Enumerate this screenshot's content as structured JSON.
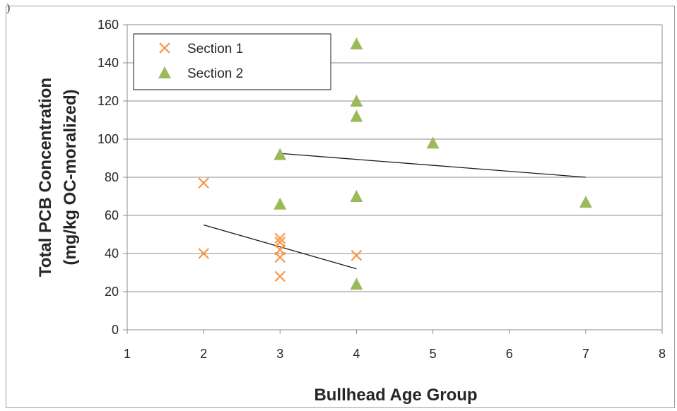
{
  "page": {
    "corner_mark": ")"
  },
  "chart_data": {
    "type": "scatter",
    "title": "",
    "xlabel": "Bullhead Age Group",
    "ylabel_line1": "Total PCB Concentration",
    "ylabel_line2": "(mg/kg OC-moralized)",
    "xlim": [
      1,
      8
    ],
    "ylim": [
      0,
      160
    ],
    "xticks": [
      1,
      2,
      3,
      4,
      5,
      6,
      7,
      8
    ],
    "yticks": [
      0,
      20,
      40,
      60,
      80,
      100,
      120,
      140,
      160
    ],
    "grid": "horizontal",
    "legend_position": "top-left",
    "series": [
      {
        "name": "Section 1",
        "marker": "x",
        "color": "#f79646",
        "points": [
          [
            2,
            77
          ],
          [
            2,
            40
          ],
          [
            3,
            48
          ],
          [
            3,
            46
          ],
          [
            3,
            42
          ],
          [
            3,
            38
          ],
          [
            3,
            28
          ],
          [
            4,
            39
          ]
        ],
        "trendline": [
          [
            2,
            55
          ],
          [
            4,
            32
          ]
        ]
      },
      {
        "name": "Section 2",
        "marker": "triangle",
        "color": "#9bbb59",
        "points": [
          [
            3,
            92
          ],
          [
            3,
            66
          ],
          [
            4,
            150
          ],
          [
            4,
            120
          ],
          [
            4,
            112
          ],
          [
            4,
            70
          ],
          [
            4,
            24
          ],
          [
            5,
            98
          ],
          [
            7,
            67
          ]
        ],
        "trendline": [
          [
            3,
            92.5
          ],
          [
            7,
            80
          ]
        ]
      }
    ]
  }
}
